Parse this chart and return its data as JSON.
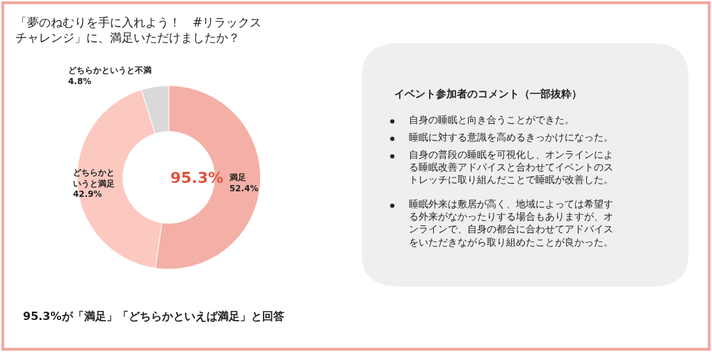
{
  "chart_data": {
    "type": "donut",
    "title": "「夢のねむりを手に入れよう！　#リラックスチャレンジ」に、満足いただけましたか？",
    "categories": [
      "満足",
      "どちらかというと満足",
      "どちらかというと不満"
    ],
    "values": [
      52.4,
      42.9,
      4.8
    ],
    "value_labels": [
      "52.4%",
      "42.9%",
      "4.8%"
    ],
    "colors": [
      "#f4b0a6",
      "#fcc9c1",
      "#d9d9d9"
    ],
    "legend": false,
    "annotations": [
      "95.3%",
      "イベント参加者のコメント（一部抜粋）",
      "自身の睡眠と向き合うことができた。",
      "睡眠に対する意識を高めるきっかけになった。",
      "自身の普段の睡眠を可視化し、オンラインによる睡眠改善アドバイスと合わせてイベントのストレッチに取り組んだことで睡眠が改善した。",
      "睡眠外来は敷居が高く、地域によっては希望する外来がなかったりする場合もありますが、オンラインで、自身の都合に合わせてアドバイスをいただきながら取り組めたことが良かった。",
      "95.3%が「満足」「どちらかといえば満足」と回答"
    ]
  }
}
